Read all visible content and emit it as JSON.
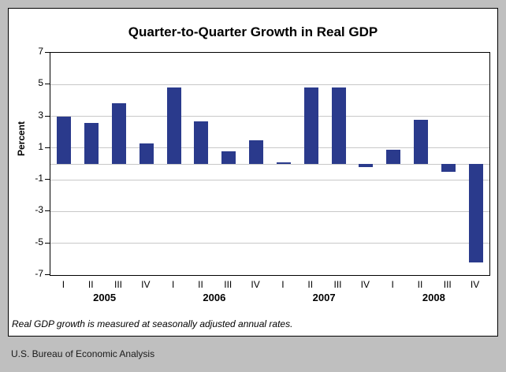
{
  "chart_data": {
    "type": "bar",
    "title": "Quarter-to-Quarter Growth in Real GDP",
    "ylabel": "Percent",
    "ylim": [
      -7,
      7
    ],
    "yticks": [
      7,
      5,
      3,
      1,
      -1,
      -3,
      -5,
      -7
    ],
    "gridlines": [
      5,
      3,
      1,
      0,
      -1,
      -3,
      -5
    ],
    "bar_color": "#2a3a8c",
    "grid_color": "#c8c8c8",
    "groups": [
      {
        "year": "2005",
        "quarters": [
          "I",
          "II",
          "III",
          "IV"
        ],
        "values": [
          3.0,
          2.6,
          3.8,
          1.3
        ]
      },
      {
        "year": "2006",
        "quarters": [
          "I",
          "II",
          "III",
          "IV"
        ],
        "values": [
          4.8,
          2.7,
          0.8,
          1.5
        ]
      },
      {
        "year": "2007",
        "quarters": [
          "I",
          "II",
          "III",
          "IV"
        ],
        "values": [
          0.1,
          4.8,
          4.8,
          -0.2
        ]
      },
      {
        "year": "2008",
        "quarters": [
          "I",
          "II",
          "III",
          "IV"
        ],
        "values": [
          0.9,
          2.8,
          -0.5,
          -6.2
        ]
      }
    ]
  },
  "footnote": "Real GDP growth is measured at seasonally adjusted annual rates.",
  "source": "U.S. Bureau of Economic Analysis"
}
